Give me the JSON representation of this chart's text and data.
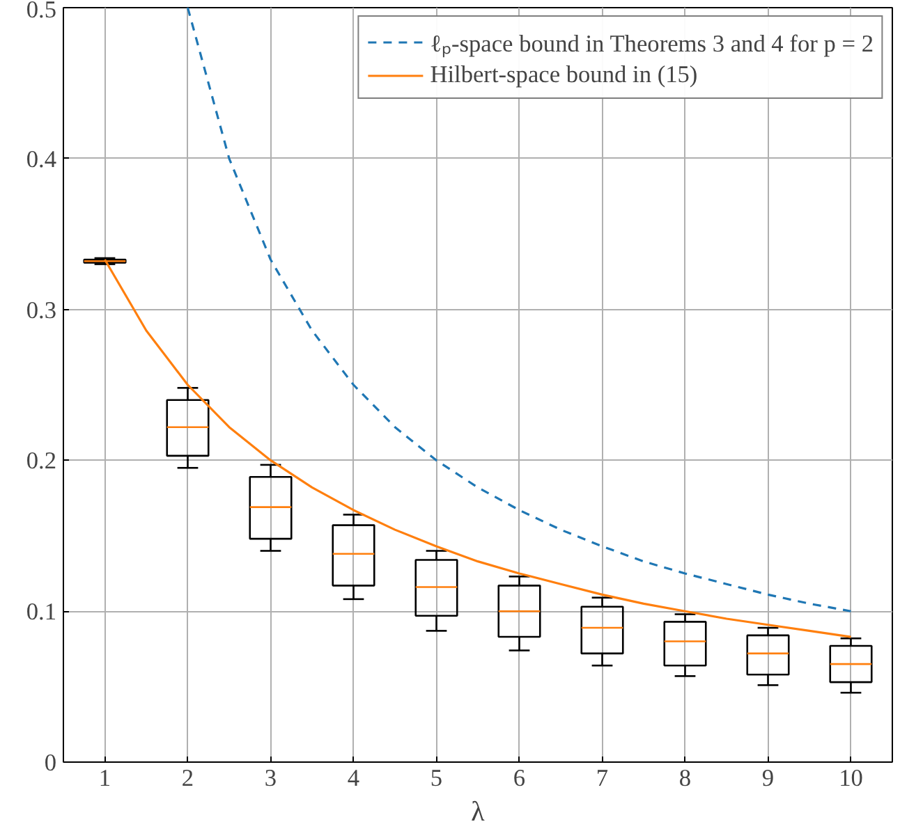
{
  "chart_data": {
    "type": "box",
    "xlabel": "λ",
    "x": [
      1,
      2,
      3,
      4,
      5,
      6,
      7,
      8,
      9,
      10
    ],
    "boxes": [
      {
        "low": 0.33,
        "q1": 0.331,
        "median": 0.332,
        "q3": 0.333,
        "high": 0.334
      },
      {
        "low": 0.195,
        "q1": 0.203,
        "median": 0.222,
        "q3": 0.24,
        "high": 0.248
      },
      {
        "low": 0.14,
        "q1": 0.148,
        "median": 0.169,
        "q3": 0.189,
        "high": 0.197
      },
      {
        "low": 0.108,
        "q1": 0.117,
        "median": 0.138,
        "q3": 0.157,
        "high": 0.164
      },
      {
        "low": 0.087,
        "q1": 0.097,
        "median": 0.116,
        "q3": 0.134,
        "high": 0.14
      },
      {
        "low": 0.074,
        "q1": 0.083,
        "median": 0.1,
        "q3": 0.117,
        "high": 0.123
      },
      {
        "low": 0.064,
        "q1": 0.072,
        "median": 0.089,
        "q3": 0.103,
        "high": 0.109
      },
      {
        "low": 0.057,
        "q1": 0.064,
        "median": 0.08,
        "q3": 0.093,
        "high": 0.098
      },
      {
        "low": 0.051,
        "q1": 0.058,
        "median": 0.072,
        "q3": 0.084,
        "high": 0.089
      },
      {
        "low": 0.046,
        "q1": 0.053,
        "median": 0.065,
        "q3": 0.077,
        "high": 0.082
      }
    ],
    "series": [
      {
        "type": "line",
        "name": "ℓₚ-space bound in Theorems 3 and 4 for p = 2",
        "color": "#1f77b4",
        "line_style": "dashed",
        "x": [
          2,
          2.5,
          3,
          3.5,
          4,
          4.5,
          5,
          5.5,
          6,
          6.5,
          7,
          7.5,
          8,
          8.5,
          9,
          9.5,
          10
        ],
        "values": [
          0.5,
          0.4,
          0.333,
          0.286,
          0.25,
          0.222,
          0.2,
          0.182,
          0.167,
          0.154,
          0.143,
          0.133,
          0.125,
          0.118,
          0.111,
          0.105,
          0.1
        ]
      },
      {
        "type": "line",
        "name": "Hilbert-space bound in (15)",
        "color": "#ff7f0e",
        "line_style": "solid",
        "x": [
          1,
          1.5,
          2,
          2.5,
          3,
          3.5,
          4,
          4.5,
          5,
          5.5,
          6,
          6.5,
          7,
          7.5,
          8,
          8.5,
          9,
          9.5,
          10
        ],
        "values": [
          0.333,
          0.286,
          0.25,
          0.222,
          0.2,
          0.182,
          0.167,
          0.154,
          0.143,
          0.133,
          0.125,
          0.118,
          0.111,
          0.105,
          0.1,
          0.095,
          0.091,
          0.087,
          0.083
        ]
      }
    ],
    "xlim": [
      0.5,
      10.5
    ],
    "ylim": [
      0,
      0.5
    ],
    "xticks": [
      1,
      2,
      3,
      4,
      5,
      6,
      7,
      8,
      9,
      10
    ],
    "yticks": [
      0,
      0.1,
      0.2,
      0.3,
      0.4,
      0.5
    ],
    "grid": true,
    "legend": "top right"
  }
}
